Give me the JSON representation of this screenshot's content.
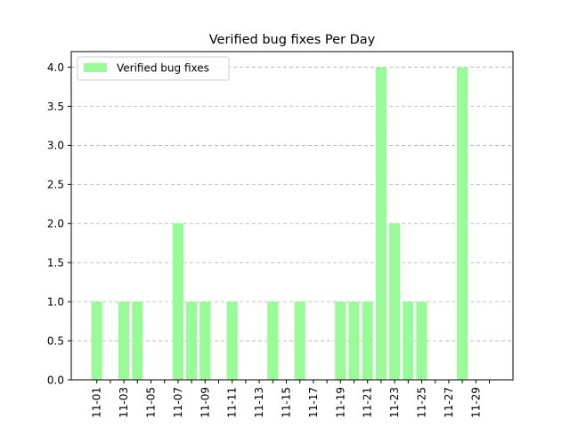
{
  "chart_data": {
    "type": "bar",
    "title": "Verified bug fixes Per Day",
    "xlabel": "",
    "ylabel": "",
    "categories": [
      "11-01",
      "11-02",
      "11-03",
      "11-04",
      "11-05",
      "11-06",
      "11-07",
      "11-08",
      "11-09",
      "11-10",
      "11-11",
      "11-12",
      "11-13",
      "11-14",
      "11-15",
      "11-16",
      "11-17",
      "11-18",
      "11-19",
      "11-20",
      "11-21",
      "11-22",
      "11-23",
      "11-24",
      "11-25",
      "11-26",
      "11-27",
      "11-28",
      "11-29",
      "11-30"
    ],
    "x_tick_labels": [
      "11-01",
      "11-03",
      "11-05",
      "11-07",
      "11-09",
      "11-11",
      "11-13",
      "11-15",
      "11-17",
      "11-19",
      "11-21",
      "11-23",
      "11-25",
      "11-27",
      "11-29"
    ],
    "series": [
      {
        "name": "Verified bug fixes",
        "color": "#98fb98",
        "values": [
          1,
          0,
          1,
          1,
          0,
          0,
          2,
          1,
          1,
          0,
          1,
          0,
          0,
          1,
          0,
          1,
          0,
          0,
          1,
          1,
          1,
          4,
          2,
          1,
          1,
          0,
          0,
          4,
          0,
          0
        ]
      }
    ],
    "ylim": [
      0,
      4.2
    ],
    "y_ticks": [
      "0.0",
      "0.5",
      "1.0",
      "1.5",
      "2.0",
      "2.5",
      "3.0",
      "3.5",
      "4.0"
    ],
    "grid": "y-dashed",
    "legend_position": "top-left"
  }
}
